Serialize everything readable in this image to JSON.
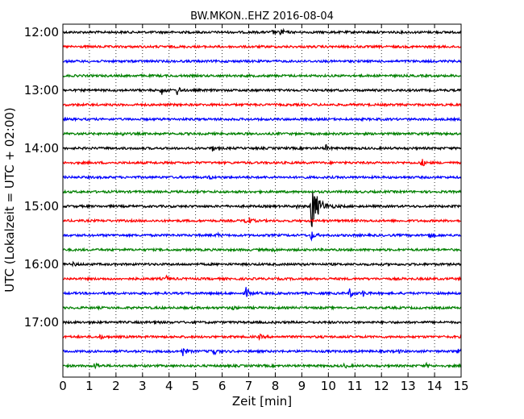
{
  "chart_data": {
    "type": "line",
    "title": "BW.MKON..EHZ 2016-08-04",
    "xlabel": "Zeit  [min]",
    "ylabel": "UTC (Lokalzeit = UTC + 02:00)",
    "xlim": [
      0,
      15
    ],
    "x_ticks": [
      "0",
      "1",
      "2",
      "3",
      "4",
      "5",
      "6",
      "7",
      "8",
      "9",
      "10",
      "11",
      "12",
      "13",
      "14",
      "15"
    ],
    "y_tick_labels": [
      "12:00",
      "13:00",
      "14:00",
      "15:00",
      "16:00",
      "17:00"
    ],
    "y_tick_hours": [
      0,
      1,
      2,
      3,
      4,
      5
    ],
    "rows_per_hour": 4,
    "grid": "vertical dotted",
    "colors": [
      "#000000",
      "#ff0000",
      "#0000ff",
      "#008000"
    ],
    "traces": [
      {
        "label": "12:00",
        "color": "#000000",
        "events": [
          [
            8.2,
            6
          ],
          [
            7.9,
            3
          ]
        ]
      },
      {
        "label": "12:15",
        "color": "#ff0000",
        "events": []
      },
      {
        "label": "12:30",
        "color": "#0000ff",
        "events": []
      },
      {
        "label": "12:45",
        "color": "#008000",
        "events": []
      },
      {
        "label": "13:00",
        "color": "#000000",
        "events": [
          [
            3.7,
            6
          ],
          [
            4.3,
            6
          ]
        ]
      },
      {
        "label": "13:15",
        "color": "#ff0000",
        "events": []
      },
      {
        "label": "13:30",
        "color": "#0000ff",
        "events": []
      },
      {
        "label": "13:45",
        "color": "#008000",
        "events": [
          [
            2.2,
            3
          ]
        ]
      },
      {
        "label": "14:00",
        "color": "#000000",
        "events": [
          [
            5.6,
            4
          ],
          [
            9.9,
            4
          ]
        ]
      },
      {
        "label": "14:15",
        "color": "#ff0000",
        "events": [
          [
            13.5,
            6
          ]
        ]
      },
      {
        "label": "14:30",
        "color": "#0000ff",
        "events": [
          [
            5.5,
            3
          ]
        ]
      },
      {
        "label": "14:45",
        "color": "#008000",
        "events": []
      },
      {
        "label": "15:00",
        "color": "#000000",
        "events": [
          [
            9.35,
            30
          ],
          [
            8.8,
            2
          ]
        ]
      },
      {
        "label": "15:15",
        "color": "#ff0000",
        "events": [
          [
            6.9,
            9
          ]
        ]
      },
      {
        "label": "15:30",
        "color": "#0000ff",
        "events": [
          [
            9.35,
            6
          ],
          [
            13.8,
            4
          ],
          [
            5.8,
            3
          ]
        ]
      },
      {
        "label": "15:45",
        "color": "#008000",
        "events": [
          [
            7.9,
            3
          ]
        ]
      },
      {
        "label": "16:00",
        "color": "#000000",
        "events": [
          [
            0.4,
            3
          ]
        ]
      },
      {
        "label": "16:15",
        "color": "#ff0000",
        "events": [
          [
            3.9,
            3
          ]
        ]
      },
      {
        "label": "16:30",
        "color": "#0000ff",
        "events": [
          [
            6.9,
            7
          ],
          [
            10.8,
            6
          ],
          [
            11.3,
            4
          ]
        ]
      },
      {
        "label": "16:45",
        "color": "#008000",
        "events": [
          [
            6.4,
            3
          ]
        ]
      },
      {
        "label": "17:00",
        "color": "#000000",
        "events": [
          [
            3.4,
            3
          ]
        ]
      },
      {
        "label": "17:15",
        "color": "#ff0000",
        "events": [
          [
            1.4,
            3
          ],
          [
            7.4,
            3
          ]
        ]
      },
      {
        "label": "17:30",
        "color": "#0000ff",
        "events": [
          [
            4.5,
            7
          ],
          [
            5.6,
            8
          ],
          [
            12.6,
            3
          ],
          [
            14.9,
            4
          ]
        ]
      },
      {
        "label": "17:45",
        "color": "#008000",
        "events": [
          [
            1.2,
            5
          ],
          [
            10.6,
            3
          ],
          [
            13.7,
            3
          ]
        ]
      }
    ]
  }
}
